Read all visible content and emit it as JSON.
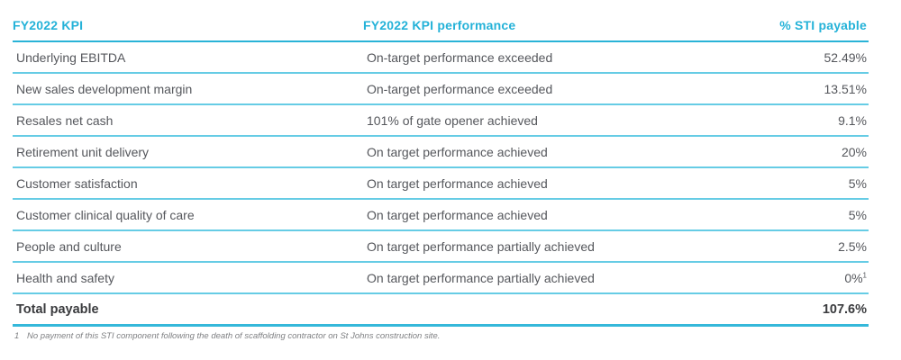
{
  "accent_color": "#24b2d8",
  "line_color_light": "#66cce5",
  "line_color_strong": "#29b3d7",
  "table": {
    "columns": [
      {
        "label": "FY2022 KPI",
        "align": "left"
      },
      {
        "label": "FY2022 KPI performance",
        "align": "left"
      },
      {
        "label": "% STI payable",
        "align": "right"
      }
    ],
    "rows": [
      {
        "kpi": "Underlying EBITDA",
        "performance": "On-target performance exceeded",
        "sti": "52.49%"
      },
      {
        "kpi": "New sales development margin",
        "performance": "On-target performance exceeded",
        "sti": "13.51%"
      },
      {
        "kpi": "Resales net cash",
        "performance": "101% of gate opener achieved",
        "sti": "9.1%"
      },
      {
        "kpi": "Retirement unit delivery",
        "performance": "On target performance achieved",
        "sti": "20%"
      },
      {
        "kpi": "Customer satisfaction",
        "performance": "On target performance achieved",
        "sti": "5%"
      },
      {
        "kpi": "Customer clinical quality of care",
        "performance": "On target performance achieved",
        "sti": "5%"
      },
      {
        "kpi": "People and culture",
        "performance": "On target performance partially achieved",
        "sti": "2.5%"
      },
      {
        "kpi": "Health and safety",
        "performance": "On target performance partially achieved",
        "sti": "0%",
        "footnote_marker": "1"
      }
    ],
    "total": {
      "label": "Total payable",
      "value": "107.6%"
    }
  },
  "footnote": {
    "marker": "1",
    "text": "No payment of this STI component following the death of scaffolding contractor on St Johns construction site."
  }
}
